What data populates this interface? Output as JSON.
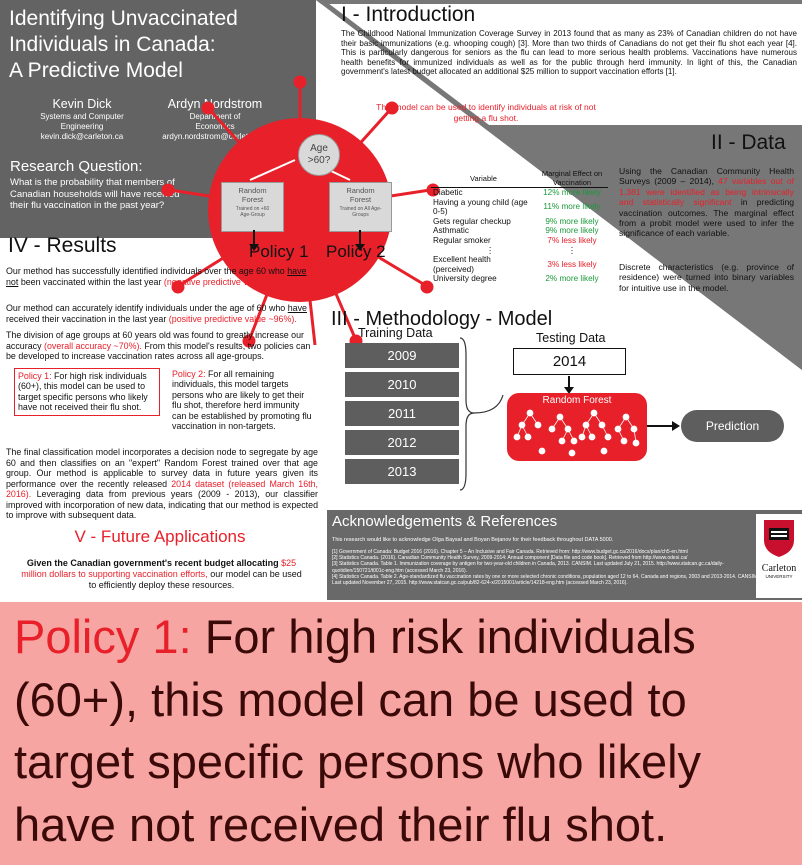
{
  "title": {
    "lines": [
      "Identifying Unvaccinated",
      "Individuals in Canada:",
      "A Predictive Model"
    ]
  },
  "authors": [
    {
      "name": "Kevin Dick",
      "dept": "Systems and Computer Engineering",
      "email": "kevin.dick@carleton.ca"
    },
    {
      "name": "Ardyn Nordstrom",
      "dept": "Department of Economics",
      "email": "ardyn.nordstrom@carleton.ca"
    }
  ],
  "research_question": {
    "heading": "Research Question:",
    "text": "What is the probability that members of Canadian households will have received their flu vaccination in the past year?"
  },
  "intro": {
    "heading": "I - Introduction",
    "text": "The Childhood National Immunization Coverage Survey in 2013 found that as many as 23% of Canadian children do not have their basic immunizations (e.g. whooping cough) [3]. More than two thirds of Canadians do not get their flu shot each year [4]. This is particularly dangerous for seniors as the flu can lead to more serious health problems. Vaccinations have numerous health benefits for immunized individuals as well as for the public through herd immunity. In light of this, the Canadian government's latest budget allocated an additional $25 million to support vaccination efforts [1].",
    "highlight": "This model can be used to identify individuals at risk of not getting a flu shot."
  },
  "tree": {
    "root": [
      "Age",
      ">60?"
    ],
    "left": {
      "title": [
        "Random",
        "Forest"
      ],
      "sub": [
        "Trained on +60",
        "Age-Group"
      ]
    },
    "right": {
      "title": [
        "Random",
        "Forest"
      ],
      "sub": [
        "Trained on All Age-",
        "Groups"
      ]
    },
    "policy1": "Policy 1",
    "policy2": "Policy 2"
  },
  "data_section": {
    "heading": "II - Data",
    "text_a": "Using the Canadian Community Health Surveys (2009 – 2014),",
    "text_hl": "47 variables out of 1,381 were identified as being intrinsically and statistically significant",
    "text_b": "in predicting vaccination outcomes. The marginal effect from a probit model were used to infer the significance of each variable.",
    "text2": "Discrete characteristics (e.g. province of residence) were turned into binary variables for intuitive use in the model.",
    "table": {
      "col_variable": "Variable",
      "col_effect": "Marginal Effect on Vaccination",
      "rows": [
        {
          "variable": "Diabetic",
          "effect": "12% more likely",
          "color": "green"
        },
        {
          "variable": "Having a young child (age 0-5)",
          "effect": "11% more likely",
          "color": "green"
        },
        {
          "variable": "Gets regular checkup",
          "effect": "9% more likely",
          "color": "green"
        },
        {
          "variable": "Asthmatic",
          "effect": "9% more likely",
          "color": "green"
        },
        {
          "variable": "Regular smoker",
          "effect": "7% less likely",
          "color": "red"
        },
        {
          "variable": "⋮",
          "effect": "⋮",
          "color": "black"
        },
        {
          "variable": "Excellent health (perceived)",
          "effect": "3% less likely",
          "color": "red"
        },
        {
          "variable": "University degree",
          "effect": "2% more likely",
          "color": "green"
        }
      ]
    }
  },
  "results": {
    "heading": "IV - Results",
    "p1_a": "Our method has successfully identified individuals over the age 60 who",
    "p1_u": "have not",
    "p1_b": "been vaccinated within the last year",
    "p1_hl": "(negative predictive value ~80%).",
    "p2_a": "Our method can accurately identify individuals under the age of 60 who",
    "p2_u": "have",
    "p2_b": "received their vaccination in the last year",
    "p2_hl": "(positive predictive value ~96%).",
    "p3_a": "The division of age groups at 60 years old was found to greatly increase our accuracy",
    "p3_hl": "(overall accuracy ~70%).",
    "p3_b": "From this model's results, two policies can be developed to increase vaccination rates across all age-groups.",
    "policy1_label": "Policy 1:",
    "policy1_text": "For high risk individuals (60+), this model can be used to target specific persons who likely have not received their flu shot.",
    "policy2_label": "Policy 2:",
    "policy2_text": "For all remaining individuals, this model targets persons who are likely to get their flu shot, therefore herd immunity can be established by promoting flu vaccination in non-targets.",
    "p4_a": "The final classification model incorporates a decision node to segregate by age 60 and then classifies on an \"expert\" Random Forest trained over that age group. Our method is applicable to survey data in future years given its performance over the recently released",
    "p4_hl": "2014 dataset (released March 16th, 2016).",
    "p4_b": "Leveraging data from previous years (2009 - 2013), our classifier improved with incorporation of new data, indicating that our method is expected to improve with subsequent data."
  },
  "methodology": {
    "heading": "III - Methodology - Model",
    "training_label": "Training Data",
    "training_years": [
      "2009",
      "2010",
      "2011",
      "2012",
      "2013"
    ],
    "testing_label": "Testing Data",
    "testing_year": "2014",
    "rf_label": "Random Forest",
    "prediction_label": "Prediction"
  },
  "future": {
    "heading": "V - Future Applications",
    "text_a": "Given the Canadian government's recent budget allocating",
    "text_hl": "$25 million dollars to supporting vaccination efforts,",
    "text_b": "our model can be used to efficiently deploy these resources."
  },
  "ack": {
    "heading": "Acknowledgements & References",
    "thanks": "This research would like to acknowledge Olga Baysal and Boyan Bejanov for their feedback throughout DATA 5000.",
    "refs": [
      "[1]   Government of Canada: Budget 2016 (2016). Chapter 5 – An Inclusive and Fair Canada. Retrieved from: http://www.budget.gc.ca/2016/docs/plan/ch5-en.html",
      "[2]   Statistics Canada. (2016). Canadian Community Health Survey, 2009-2014: Annual component [Data file and code book]. Retrieved from http://www.odesi.ca/",
      "[3]   Statistics Canada. Table 1. Immunization coverage by antigen for two-year-old children in Canada, 2013. CANSIM. Last updated July 21, 2015. http://www.statcan.gc.ca/daily-quotidien/150721/t001c-eng.htm (accessed March 23, 2016).",
      "[4]   Statistics Canada. Table 2. Age-standardized flu vaccination rates by one or more selected chronic conditions, population aged 12 to 64, Canada and regions, 2003 and 2013-2014. CANSIM. Last updated November 27, 2015. http://www.statcan.gc.ca/pub/82-624-x/2015001/article/14218-eng.htm (accessed March 23, 2016)."
    ],
    "logo_text": "Carleton",
    "logo_sub": "UNIVERSITY"
  },
  "overlay": {
    "label": "Policy 1:",
    "text": "For high risk individuals (60+), this model can be used to target specific persons who likely have not received their flu shot."
  },
  "colors": {
    "accent_red": "#e8202a",
    "dark_grey": "#636363",
    "overlay_pink": "#f7a5a3",
    "green": "#1a9a3a"
  }
}
